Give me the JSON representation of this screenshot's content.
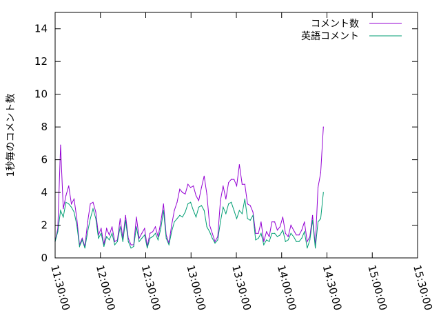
{
  "chart_data": {
    "type": "line",
    "title": "",
    "xlabel": "",
    "ylabel": "1秒毎のコメント数",
    "xlim": [
      "11:30:00",
      "15:30:00"
    ],
    "ylim": [
      0,
      15
    ],
    "x_ticks": [
      "11:30:00",
      "12:00:00",
      "12:30:00",
      "13:00:00",
      "13:30:00",
      "14:00:00",
      "14:30:00",
      "15:00:00",
      "15:30:00"
    ],
    "y_ticks": [
      0,
      2,
      4,
      6,
      8,
      10,
      12,
      14
    ],
    "grid": false,
    "legend_position": "top-right",
    "series": [
      {
        "name": "コメント数",
        "color": "#9400d3",
        "points": [
          [
            "11:30:00",
            1.0
          ],
          [
            "11:31:48",
            1.8
          ],
          [
            "11:33:35",
            6.9
          ],
          [
            "11:35:23",
            3.0
          ],
          [
            "11:37:11",
            3.8
          ],
          [
            "11:38:58",
            4.4
          ],
          [
            "11:40:46",
            3.3
          ],
          [
            "11:42:34",
            3.6
          ],
          [
            "11:44:21",
            2.4
          ],
          [
            "11:46:09",
            0.8
          ],
          [
            "11:47:57",
            1.2
          ],
          [
            "11:49:44",
            0.7
          ],
          [
            "11:51:32",
            2.2
          ],
          [
            "11:53:20",
            3.3
          ],
          [
            "11:55:07",
            3.4
          ],
          [
            "11:56:55",
            2.8
          ],
          [
            "11:58:43",
            1.4
          ],
          [
            "12:00:30",
            1.8
          ],
          [
            "12:02:18",
            0.8
          ],
          [
            "12:04:06",
            1.8
          ],
          [
            "12:05:53",
            1.4
          ],
          [
            "12:07:41",
            1.9
          ],
          [
            "12:09:29",
            1.0
          ],
          [
            "12:11:16",
            1.1
          ],
          [
            "12:13:04",
            2.4
          ],
          [
            "12:14:52",
            1.2
          ],
          [
            "12:16:39",
            2.6
          ],
          [
            "12:18:27",
            1.2
          ],
          [
            "12:20:15",
            0.8
          ],
          [
            "12:22:02",
            0.8
          ],
          [
            "12:23:50",
            2.5
          ],
          [
            "12:25:38",
            1.2
          ],
          [
            "12:27:25",
            1.5
          ],
          [
            "12:29:13",
            1.8
          ],
          [
            "12:31:01",
            0.7
          ],
          [
            "12:32:48",
            1.5
          ],
          [
            "12:34:36",
            1.6
          ],
          [
            "12:36:24",
            1.9
          ],
          [
            "12:38:11",
            1.3
          ],
          [
            "12:39:59",
            2.2
          ],
          [
            "12:41:47",
            3.3
          ],
          [
            "12:43:34",
            1.4
          ],
          [
            "12:45:22",
            0.9
          ],
          [
            "12:47:10",
            2.0
          ],
          [
            "12:48:57",
            2.9
          ],
          [
            "12:50:45",
            3.4
          ],
          [
            "12:52:33",
            4.2
          ],
          [
            "12:54:20",
            4.0
          ],
          [
            "12:56:08",
            3.9
          ],
          [
            "12:57:56",
            4.5
          ],
          [
            "12:59:43",
            4.3
          ],
          [
            "13:01:31",
            4.4
          ],
          [
            "13:03:19",
            3.8
          ],
          [
            "13:05:06",
            3.5
          ],
          [
            "13:06:54",
            4.3
          ],
          [
            "13:08:42",
            5.0
          ],
          [
            "13:10:29",
            3.9
          ],
          [
            "13:12:17",
            2.0
          ],
          [
            "13:14:05",
            1.5
          ],
          [
            "13:15:52",
            1.0
          ],
          [
            "13:17:40",
            1.3
          ],
          [
            "13:19:28",
            3.5
          ],
          [
            "13:21:15",
            4.4
          ],
          [
            "13:23:03",
            3.6
          ],
          [
            "13:24:51",
            4.6
          ],
          [
            "13:26:38",
            4.8
          ],
          [
            "13:28:26",
            4.8
          ],
          [
            "13:30:14",
            4.4
          ],
          [
            "13:32:01",
            5.7
          ],
          [
            "13:33:49",
            4.5
          ],
          [
            "13:35:37",
            4.5
          ],
          [
            "13:37:24",
            3.3
          ],
          [
            "13:39:12",
            3.2
          ],
          [
            "13:41:00",
            2.8
          ],
          [
            "13:42:47",
            1.5
          ],
          [
            "13:44:35",
            1.5
          ],
          [
            "13:46:23",
            2.2
          ],
          [
            "13:48:10",
            1.0
          ],
          [
            "13:49:58",
            1.6
          ],
          [
            "13:51:46",
            1.3
          ],
          [
            "13:53:33",
            2.2
          ],
          [
            "13:55:21",
            2.2
          ],
          [
            "13:57:09",
            1.7
          ],
          [
            "13:58:56",
            1.9
          ],
          [
            "14:00:44",
            2.5
          ],
          [
            "14:02:32",
            1.5
          ],
          [
            "14:04:19",
            1.3
          ],
          [
            "14:06:07",
            2.0
          ],
          [
            "14:07:55",
            1.7
          ],
          [
            "14:09:42",
            1.4
          ],
          [
            "14:11:30",
            1.4
          ],
          [
            "14:13:18",
            1.7
          ],
          [
            "14:15:05",
            2.2
          ],
          [
            "14:16:53",
            1.0
          ],
          [
            "14:18:41",
            1.3
          ],
          [
            "14:20:28",
            2.6
          ],
          [
            "14:22:16",
            0.7
          ],
          [
            "14:24:04",
            4.3
          ],
          [
            "14:25:51",
            5.2
          ],
          [
            "14:27:39",
            8.0
          ]
        ]
      },
      {
        "name": "英語コメント",
        "color": "#009e73",
        "points": [
          [
            "11:30:00",
            1.0
          ],
          [
            "11:31:48",
            1.6
          ],
          [
            "11:33:35",
            2.9
          ],
          [
            "11:35:23",
            2.5
          ],
          [
            "11:37:11",
            3.4
          ],
          [
            "11:38:58",
            3.3
          ],
          [
            "11:40:46",
            3.1
          ],
          [
            "11:42:34",
            2.8
          ],
          [
            "11:44:21",
            2.0
          ],
          [
            "11:46:09",
            0.7
          ],
          [
            "11:47:57",
            1.1
          ],
          [
            "11:49:44",
            0.6
          ],
          [
            "11:51:32",
            1.6
          ],
          [
            "11:53:20",
            2.4
          ],
          [
            "11:55:07",
            3.0
          ],
          [
            "11:56:55",
            2.4
          ],
          [
            "11:58:43",
            1.2
          ],
          [
            "12:00:30",
            1.5
          ],
          [
            "12:02:18",
            0.7
          ],
          [
            "12:04:06",
            1.3
          ],
          [
            "12:05:53",
            1.1
          ],
          [
            "12:07:41",
            1.5
          ],
          [
            "12:09:29",
            0.8
          ],
          [
            "12:11:16",
            1.0
          ],
          [
            "12:13:04",
            1.9
          ],
          [
            "12:14:52",
            1.0
          ],
          [
            "12:16:39",
            2.3
          ],
          [
            "12:18:27",
            1.0
          ],
          [
            "12:20:15",
            0.6
          ],
          [
            "12:22:02",
            0.7
          ],
          [
            "12:23:50",
            1.9
          ],
          [
            "12:25:38",
            1.0
          ],
          [
            "12:27:25",
            1.2
          ],
          [
            "12:29:13",
            1.4
          ],
          [
            "12:31:01",
            0.6
          ],
          [
            "12:32:48",
            1.2
          ],
          [
            "12:34:36",
            1.3
          ],
          [
            "12:36:24",
            1.5
          ],
          [
            "12:38:11",
            1.1
          ],
          [
            "12:39:59",
            1.8
          ],
          [
            "12:41:47",
            2.9
          ],
          [
            "12:43:34",
            1.2
          ],
          [
            "12:45:22",
            0.8
          ],
          [
            "12:47:10",
            1.6
          ],
          [
            "12:48:57",
            2.2
          ],
          [
            "12:50:45",
            2.4
          ],
          [
            "12:52:33",
            2.6
          ],
          [
            "12:54:20",
            2.5
          ],
          [
            "12:56:08",
            2.8
          ],
          [
            "12:57:56",
            3.3
          ],
          [
            "12:59:43",
            3.4
          ],
          [
            "13:01:31",
            2.9
          ],
          [
            "13:03:19",
            2.5
          ],
          [
            "13:05:06",
            3.1
          ],
          [
            "13:06:54",
            3.2
          ],
          [
            "13:08:42",
            2.9
          ],
          [
            "13:10:29",
            1.9
          ],
          [
            "13:12:17",
            1.6
          ],
          [
            "13:14:05",
            1.2
          ],
          [
            "13:15:52",
            0.9
          ],
          [
            "13:17:40",
            1.1
          ],
          [
            "13:19:28",
            2.2
          ],
          [
            "13:21:15",
            3.1
          ],
          [
            "13:23:03",
            2.7
          ],
          [
            "13:24:51",
            3.3
          ],
          [
            "13:26:38",
            3.4
          ],
          [
            "13:28:26",
            2.9
          ],
          [
            "13:30:14",
            2.4
          ],
          [
            "13:32:01",
            2.9
          ],
          [
            "13:33:49",
            2.7
          ],
          [
            "13:35:37",
            3.6
          ],
          [
            "13:37:24",
            2.4
          ],
          [
            "13:39:12",
            2.3
          ],
          [
            "13:41:00",
            2.6
          ],
          [
            "13:42:47",
            1.1
          ],
          [
            "13:44:35",
            1.2
          ],
          [
            "13:46:23",
            1.5
          ],
          [
            "13:48:10",
            0.8
          ],
          [
            "13:49:58",
            1.1
          ],
          [
            "13:51:46",
            1.0
          ],
          [
            "13:53:33",
            1.5
          ],
          [
            "13:55:21",
            1.5
          ],
          [
            "13:57:09",
            1.3
          ],
          [
            "13:58:56",
            1.4
          ],
          [
            "14:00:44",
            1.7
          ],
          [
            "14:02:32",
            1.0
          ],
          [
            "14:04:19",
            1.1
          ],
          [
            "14:06:07",
            1.5
          ],
          [
            "14:07:55",
            1.3
          ],
          [
            "14:09:42",
            1.0
          ],
          [
            "14:11:30",
            1.0
          ],
          [
            "14:13:18",
            1.2
          ],
          [
            "14:15:05",
            1.6
          ],
          [
            "14:16:53",
            0.6
          ],
          [
            "14:18:41",
            1.1
          ],
          [
            "14:20:28",
            2.3
          ],
          [
            "14:22:16",
            0.6
          ],
          [
            "14:24:04",
            2.2
          ],
          [
            "14:25:51",
            2.4
          ],
          [
            "14:27:39",
            4.0
          ]
        ]
      }
    ]
  }
}
